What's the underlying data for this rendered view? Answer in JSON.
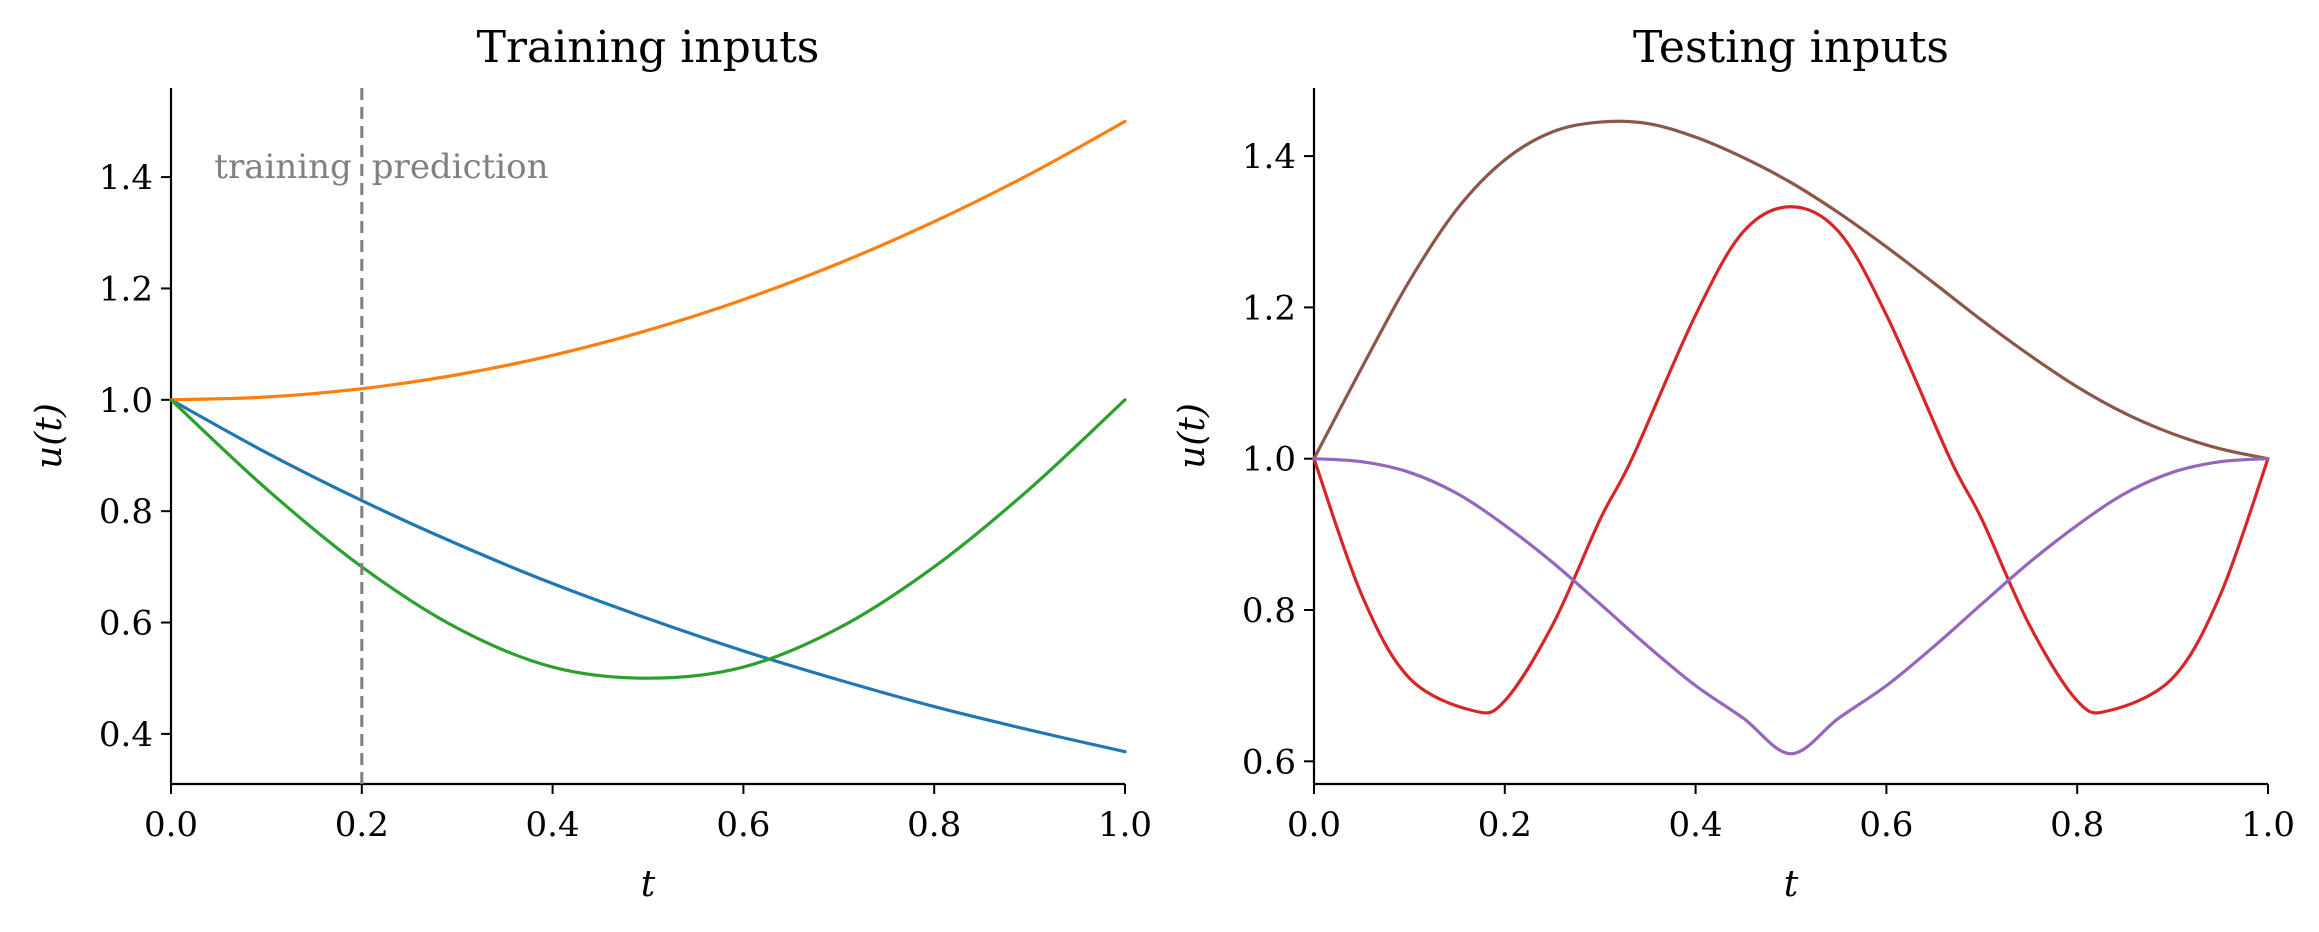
{
  "chart_data": [
    {
      "type": "line",
      "title": "Training inputs",
      "xlabel": "t",
      "ylabel": "u(t)",
      "xlim": [
        0.0,
        1.0
      ],
      "ylim": [
        0.31,
        1.56
      ],
      "xticks": [
        "0.0",
        "0.2",
        "0.4",
        "0.6",
        "0.8",
        "1.0"
      ],
      "yticks": [
        "0.4",
        "0.6",
        "0.8",
        "1.0",
        "1.2",
        "1.4"
      ],
      "grid": false,
      "annotations": [
        {
          "text": "training",
          "x": 0.2,
          "y": 1.42
        },
        {
          "text": "prediction",
          "x": 0.2,
          "y": 1.42
        }
      ],
      "vline": {
        "x": 0.2,
        "style": "dashed",
        "color": "#808080"
      },
      "series": [
        {
          "color": "#1f77b4",
          "x": [
            0.0,
            0.1,
            0.2,
            0.3,
            0.4,
            0.5,
            0.6,
            0.7,
            0.8,
            0.9,
            1.0
          ],
          "y": [
            1.0,
            0.905,
            0.819,
            0.741,
            0.67,
            0.607,
            0.549,
            0.497,
            0.449,
            0.407,
            0.368
          ]
        },
        {
          "color": "#ff7f0e",
          "x": [
            0.0,
            0.1,
            0.2,
            0.3,
            0.4,
            0.5,
            0.6,
            0.7,
            0.8,
            0.9,
            1.0
          ],
          "y": [
            1.0,
            1.005,
            1.02,
            1.045,
            1.08,
            1.125,
            1.18,
            1.245,
            1.32,
            1.405,
            1.5
          ]
        },
        {
          "color": "#2ca02c",
          "x": [
            0.0,
            0.1,
            0.2,
            0.3,
            0.4,
            0.5,
            0.6,
            0.7,
            0.8,
            0.9,
            1.0
          ],
          "y": [
            1.0,
            0.84,
            0.7,
            0.59,
            0.52,
            0.5,
            0.52,
            0.59,
            0.7,
            0.84,
            1.0
          ]
        }
      ]
    },
    {
      "type": "line",
      "title": "Testing inputs",
      "xlabel": "t",
      "ylabel": "u(t)",
      "xlim": [
        0.0,
        1.0
      ],
      "ylim": [
        0.57,
        1.49
      ],
      "xticks": [
        "0.0",
        "0.2",
        "0.4",
        "0.6",
        "0.8",
        "1.0"
      ],
      "yticks": [
        "0.6",
        "0.8",
        "1.0",
        "1.2",
        "1.4"
      ],
      "grid": false,
      "series": [
        {
          "color": "#8c564b",
          "x": [
            0.0,
            0.05,
            0.1,
            0.15,
            0.2,
            0.25,
            0.3,
            0.35,
            0.4,
            0.45,
            0.5,
            0.55,
            0.6,
            0.65,
            0.7,
            0.75,
            0.8,
            0.85,
            0.9,
            0.95,
            1.0
          ],
          "y": [
            1.0,
            1.12,
            1.235,
            1.33,
            1.395,
            1.432,
            1.445,
            1.443,
            1.425,
            1.398,
            1.365,
            1.325,
            1.28,
            1.232,
            1.183,
            1.137,
            1.095,
            1.06,
            1.033,
            1.013,
            1.0
          ]
        },
        {
          "color": "#d62728",
          "x": [
            0.0,
            0.05,
            0.1,
            0.1667,
            0.2,
            0.25,
            0.3,
            0.3333,
            0.4,
            0.45,
            0.5,
            0.55,
            0.6,
            0.6667,
            0.7,
            0.75,
            0.8,
            0.8333,
            0.9,
            0.95,
            1.0
          ],
          "y": [
            1.0,
            0.82,
            0.71,
            0.667,
            0.68,
            0.78,
            0.92,
            1.0,
            1.19,
            1.3,
            1.333,
            1.3,
            1.19,
            1.0,
            0.92,
            0.78,
            0.68,
            0.667,
            0.71,
            0.82,
            1.0
          ]
        },
        {
          "color": "#9467bd",
          "x": [
            0.0,
            0.05,
            0.1,
            0.15,
            0.2,
            0.25,
            0.3,
            0.35,
            0.4,
            0.45,
            0.5,
            0.55,
            0.6,
            0.65,
            0.7,
            0.75,
            0.8,
            0.85,
            0.9,
            0.95,
            1.0
          ],
          "y": [
            1.0,
            0.996,
            0.982,
            0.954,
            0.912,
            0.863,
            0.808,
            0.752,
            0.7,
            0.657,
            0.61,
            0.657,
            0.7,
            0.752,
            0.808,
            0.863,
            0.912,
            0.954,
            0.982,
            0.996,
            1.0
          ]
        }
      ]
    }
  ]
}
